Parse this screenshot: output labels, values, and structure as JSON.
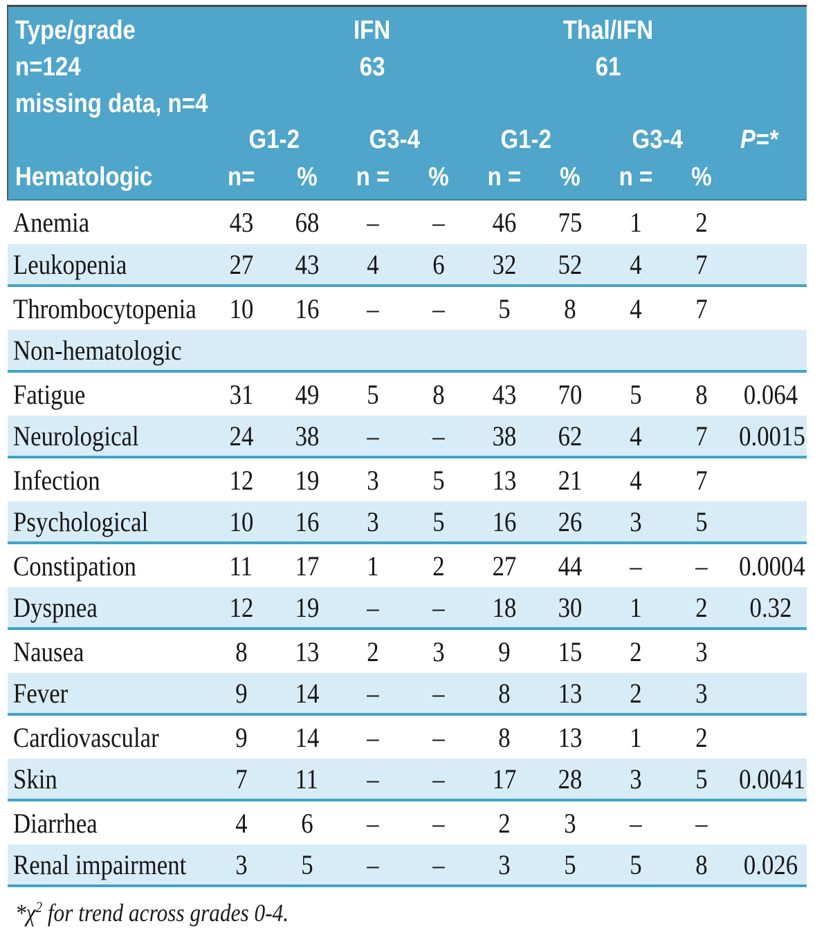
{
  "colors": {
    "header_blue": "#4fa5ca",
    "row_light_blue": "#d8ecf7",
    "rule_teal": "#41a3c8",
    "header_text": "#ffffff",
    "body_text": "#161616"
  },
  "table": {
    "header": {
      "title_lines": [
        "Type/grade",
        "n=124",
        "missing data, n=4"
      ],
      "group1": {
        "name": "IFN",
        "n": "63"
      },
      "group2": {
        "name": "Thal/IFN",
        "n": "61"
      },
      "grade_labels": [
        "G1-2",
        "G3-4",
        "G1-2",
        "G3-4"
      ],
      "p_label": "P=*",
      "section1_label": "Hematologic",
      "stat_labels": [
        "n=",
        "%",
        "n =",
        "%",
        "n =",
        "%",
        "n =",
        "%"
      ]
    },
    "rows": [
      {
        "label": "Anemia",
        "section": false,
        "values": [
          "43",
          "68",
          "–",
          "–",
          "46",
          "75",
          "1",
          "2",
          ""
        ]
      },
      {
        "label": "Leukopenia",
        "section": false,
        "values": [
          "27",
          "43",
          "4",
          "6",
          "32",
          "52",
          "4",
          "7",
          ""
        ]
      },
      {
        "label": "Thrombocytopenia",
        "section": false,
        "values": [
          "10",
          "16",
          "–",
          "–",
          "5",
          "8",
          "4",
          "7",
          ""
        ]
      },
      {
        "label": "Non-hematologic",
        "section": true,
        "values": []
      },
      {
        "label": "Fatigue",
        "section": false,
        "values": [
          "31",
          "49",
          "5",
          "8",
          "43",
          "70",
          "5",
          "8",
          "0.064"
        ]
      },
      {
        "label": "Neurological",
        "section": false,
        "values": [
          "24",
          "38",
          "–",
          "–",
          "38",
          "62",
          "4",
          "7",
          "0.0015"
        ]
      },
      {
        "label": "Infection",
        "section": false,
        "values": [
          "12",
          "19",
          "3",
          "5",
          "13",
          "21",
          "4",
          "7",
          ""
        ]
      },
      {
        "label": "Psychological",
        "section": false,
        "values": [
          "10",
          "16",
          "3",
          "5",
          "16",
          "26",
          "3",
          "5",
          ""
        ]
      },
      {
        "label": "Constipation",
        "section": false,
        "values": [
          "11",
          "17",
          "1",
          "2",
          "27",
          "44",
          "–",
          "–",
          "0.0004"
        ]
      },
      {
        "label": "Dyspnea",
        "section": false,
        "values": [
          "12",
          "19",
          "–",
          "–",
          "18",
          "30",
          "1",
          "2",
          "0.32"
        ]
      },
      {
        "label": "Nausea",
        "section": false,
        "values": [
          "8",
          "13",
          "2",
          "3",
          "9",
          "15",
          "2",
          "3",
          ""
        ]
      },
      {
        "label": "Fever",
        "section": false,
        "values": [
          "9",
          "14",
          "–",
          "–",
          "8",
          "13",
          "2",
          "3",
          ""
        ]
      },
      {
        "label": "Cardiovascular",
        "section": false,
        "values": [
          "9",
          "14",
          "–",
          "–",
          "8",
          "13",
          "1",
          "2",
          ""
        ]
      },
      {
        "label": "Skin",
        "section": false,
        "values": [
          "7",
          "11",
          "–",
          "–",
          "17",
          "28",
          "3",
          "5",
          "0.0041"
        ]
      },
      {
        "label": "Diarrhea",
        "section": false,
        "values": [
          "4",
          "6",
          "–",
          "–",
          "2",
          "3",
          "–",
          "–",
          ""
        ]
      },
      {
        "label": "Renal impairment",
        "section": false,
        "values": [
          "3",
          "5",
          "–",
          "–",
          "3",
          "5",
          "5",
          "8",
          "0.026"
        ]
      }
    ],
    "footnote": {
      "star": "*",
      "chi": "χ",
      "sup": "2",
      "text": " for trend across grades 0-4."
    }
  }
}
